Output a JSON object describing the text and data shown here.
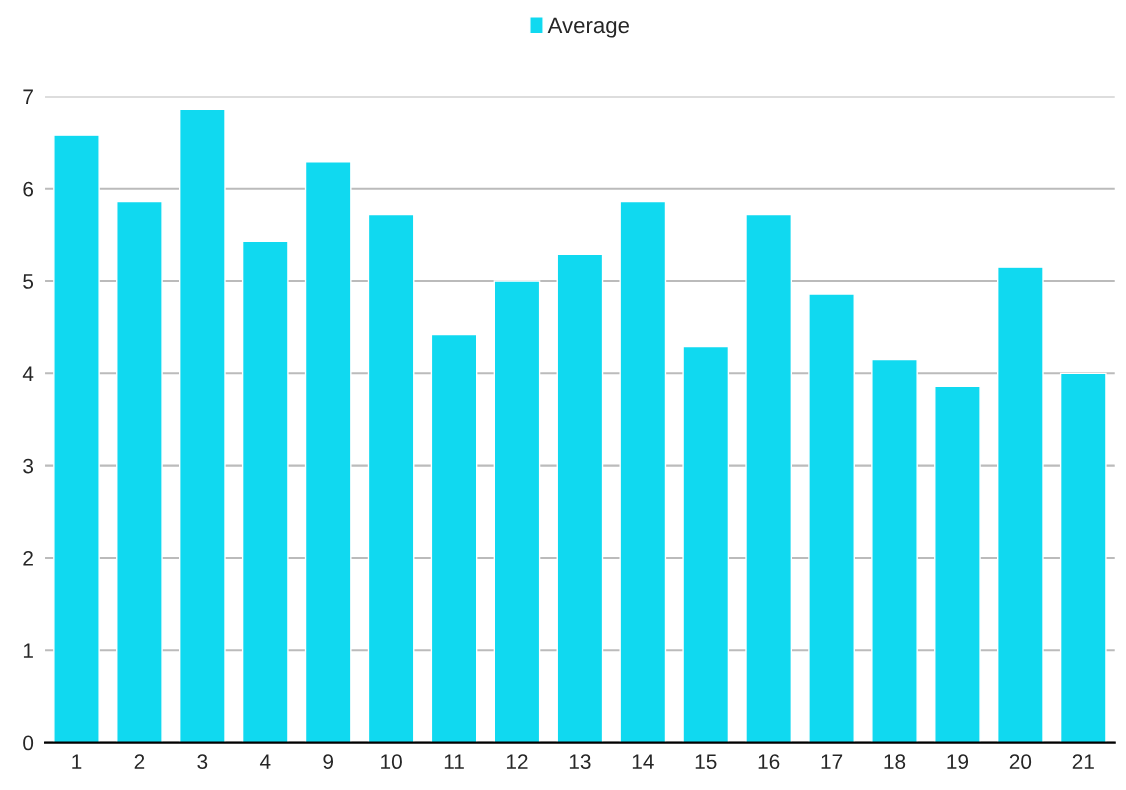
{
  "chart_data": {
    "type": "bar",
    "categories": [
      "1",
      "2",
      "3",
      "4",
      "9",
      "10",
      "11",
      "12",
      "13",
      "14",
      "15",
      "16",
      "17",
      "18",
      "19",
      "20",
      "21"
    ],
    "series": [
      {
        "name": "Average",
        "color": "#10d9f0",
        "values": [
          6.58,
          5.86,
          6.86,
          5.43,
          6.29,
          5.72,
          4.42,
          5.0,
          5.29,
          5.86,
          4.29,
          5.72,
          4.86,
          4.15,
          3.86,
          5.15,
          4.0
        ]
      }
    ],
    "ylim": [
      0,
      7
    ],
    "yticks": [
      0,
      1,
      2,
      3,
      4,
      5,
      6,
      7
    ],
    "grid": "y",
    "legend": "top"
  }
}
